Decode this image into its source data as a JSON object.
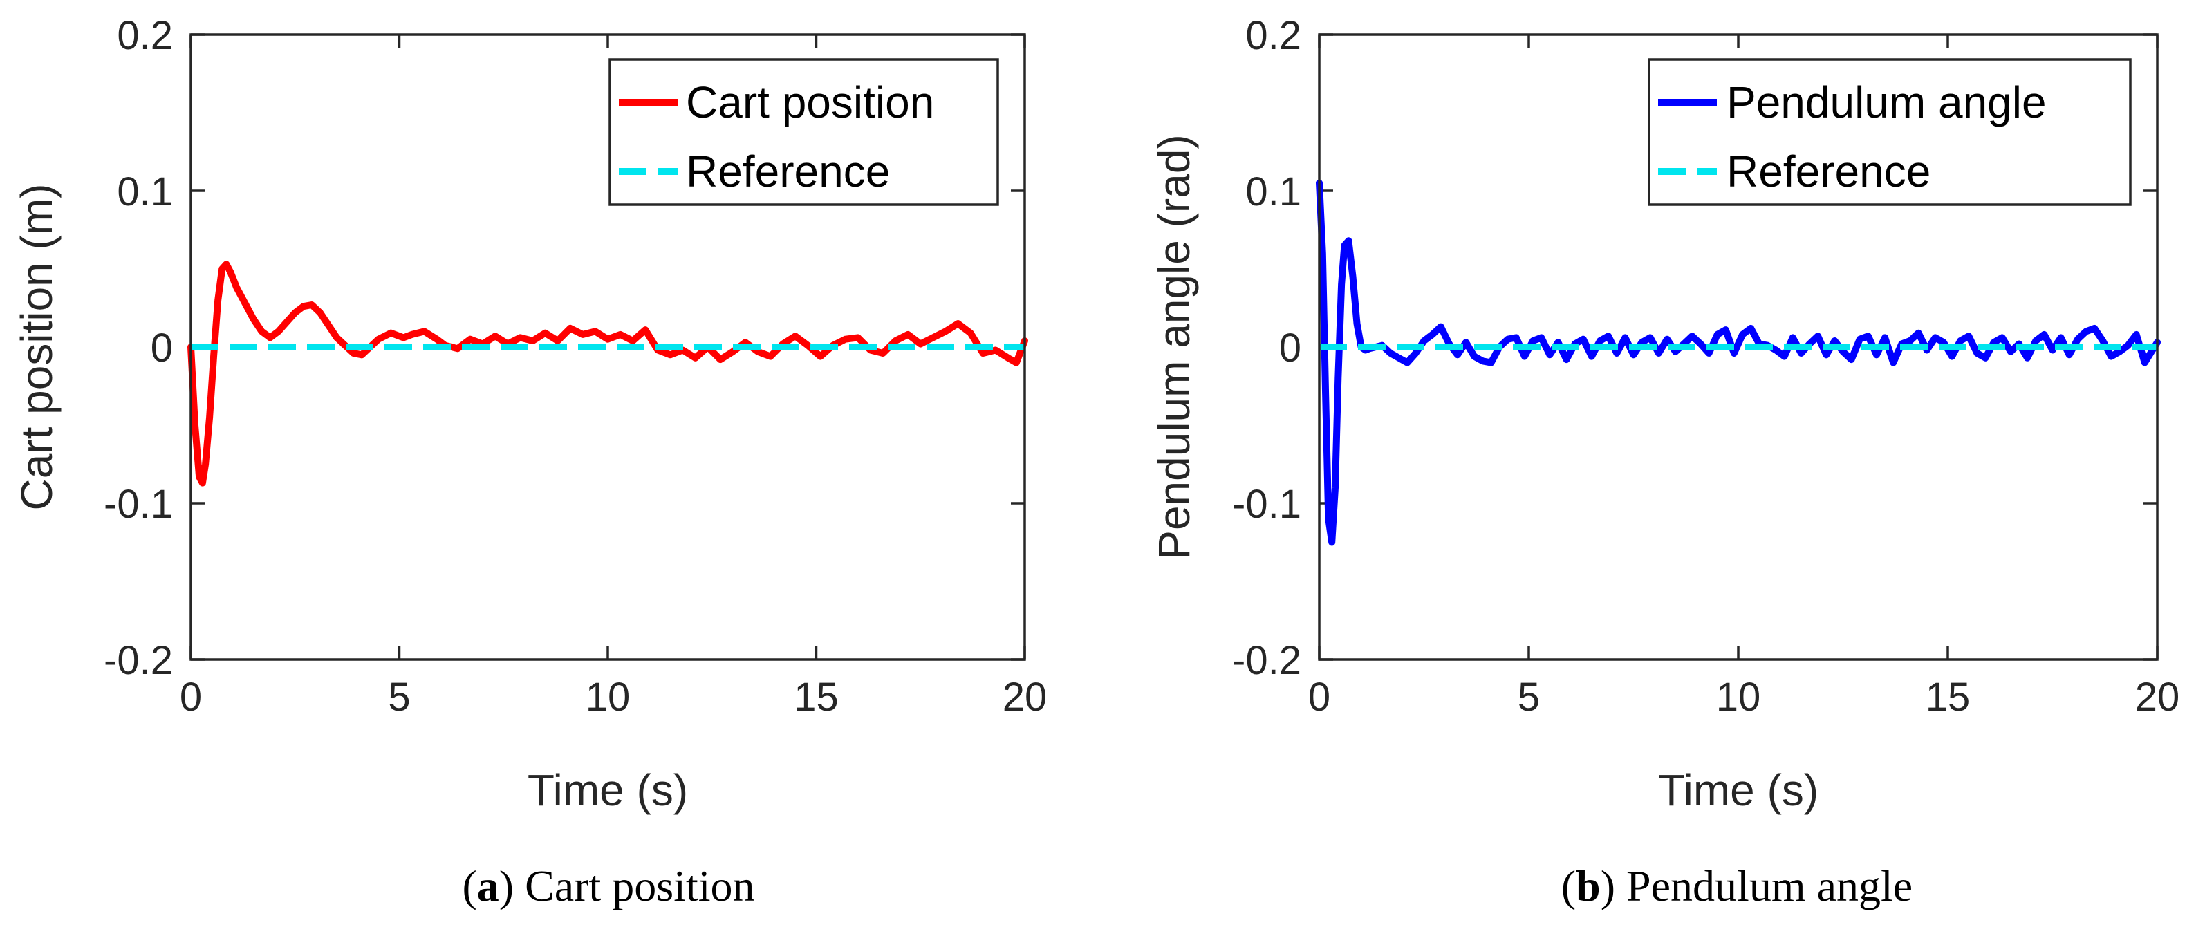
{
  "colors": {
    "red": "#ff0000",
    "blue": "#0000ff",
    "cyan": "#00e5ee",
    "axis": "#262626"
  },
  "chart_data": [
    {
      "type": "line",
      "xlabel": "Time (s)",
      "ylabel": "Cart position (m)",
      "xlim": [
        0,
        20
      ],
      "ylim": [
        -0.2,
        0.2
      ],
      "xticks": [
        0,
        5,
        10,
        15,
        20
      ],
      "xtick_labels": [
        "0",
        "5",
        "10",
        "15",
        "20"
      ],
      "yticks": [
        -0.2,
        -0.1,
        0,
        0.1,
        0.2
      ],
      "ytick_labels": [
        "-0.2",
        "-0.1",
        "0",
        "0.1",
        "0.2"
      ],
      "legend_position": "top-right",
      "caption_letter": "a",
      "caption_text": "Cart position",
      "series": [
        {
          "name": "Cart position",
          "color": "#ff0000",
          "style": "solid",
          "x": [
            0,
            0.1,
            0.2,
            0.28,
            0.35,
            0.45,
            0.55,
            0.65,
            0.75,
            0.85,
            0.95,
            1.1,
            1.3,
            1.5,
            1.7,
            1.9,
            2.1,
            2.3,
            2.5,
            2.7,
            2.9,
            3.1,
            3.3,
            3.5,
            3.7,
            3.9,
            4.1,
            4.3,
            4.5,
            4.8,
            5.1,
            5.3,
            5.6,
            5.9,
            6.1,
            6.4,
            6.7,
            7.0,
            7.3,
            7.6,
            7.9,
            8.2,
            8.5,
            8.8,
            9.1,
            9.4,
            9.7,
            10.0,
            10.3,
            10.6,
            10.9,
            11.2,
            11.5,
            11.8,
            12.1,
            12.4,
            12.7,
            13.0,
            13.3,
            13.6,
            13.9,
            14.2,
            14.5,
            14.8,
            15.1,
            15.4,
            15.7,
            16.0,
            16.3,
            16.6,
            16.9,
            17.2,
            17.5,
            17.8,
            18.1,
            18.4,
            18.7,
            19.0,
            19.3,
            19.6,
            19.8,
            20.0
          ],
          "y": [
            0,
            -0.05,
            -0.083,
            -0.087,
            -0.075,
            -0.045,
            -0.005,
            0.03,
            0.05,
            0.053,
            0.048,
            0.038,
            0.028,
            0.018,
            0.01,
            0.006,
            0.01,
            0.016,
            0.022,
            0.026,
            0.027,
            0.022,
            0.014,
            0.006,
            0.001,
            -0.004,
            -0.005,
            0,
            0.005,
            0.009,
            0.006,
            0.008,
            0.01,
            0.005,
            0.001,
            -0.001,
            0.005,
            0.002,
            0.007,
            0.002,
            0.006,
            0.004,
            0.009,
            0.004,
            0.012,
            0.008,
            0.01,
            0.005,
            0.008,
            0.004,
            0.011,
            -0.002,
            -0.005,
            -0.002,
            -0.007,
            0,
            -0.008,
            -0.003,
            0.003,
            -0.003,
            -0.006,
            0.002,
            0.007,
            0.001,
            -0.006,
            0.001,
            0.005,
            0.006,
            -0.002,
            -0.004,
            0.004,
            0.008,
            0.002,
            0.006,
            0.01,
            0.015,
            0.009,
            -0.004,
            -0.002,
            -0.007,
            -0.01,
            0.004
          ]
        },
        {
          "name": "Reference",
          "color": "#00e5ee",
          "style": "dashed",
          "x": [
            0,
            20
          ],
          "y": [
            0,
            0
          ]
        }
      ]
    },
    {
      "type": "line",
      "xlabel": "Time (s)",
      "ylabel": "Pendulum angle (rad)",
      "xlim": [
        0,
        20
      ],
      "ylim": [
        -0.2,
        0.2
      ],
      "xticks": [
        0,
        5,
        10,
        15,
        20
      ],
      "xtick_labels": [
        "0",
        "5",
        "10",
        "15",
        "20"
      ],
      "yticks": [
        -0.2,
        -0.1,
        0,
        0.1,
        0.2
      ],
      "ytick_labels": [
        "-0.2",
        "-0.1",
        "0",
        "0.1",
        "0.2"
      ],
      "legend_position": "top-right",
      "caption_letter": "b",
      "caption_text": "Pendulum angle",
      "series": [
        {
          "name": "Pendulum angle",
          "color": "#0000ff",
          "style": "solid",
          "x": [
            0,
            0.08,
            0.15,
            0.22,
            0.3,
            0.38,
            0.45,
            0.53,
            0.6,
            0.7,
            0.8,
            0.9,
            1.0,
            1.1,
            1.2,
            1.35,
            1.5,
            1.7,
            1.9,
            2.1,
            2.3,
            2.5,
            2.7,
            2.9,
            3.1,
            3.3,
            3.5,
            3.7,
            3.9,
            4.1,
            4.3,
            4.5,
            4.7,
            4.9,
            5.1,
            5.3,
            5.5,
            5.7,
            5.9,
            6.1,
            6.3,
            6.5,
            6.7,
            6.9,
            7.1,
            7.3,
            7.5,
            7.7,
            7.9,
            8.1,
            8.3,
            8.5,
            8.7,
            8.9,
            9.1,
            9.3,
            9.5,
            9.7,
            9.9,
            10.1,
            10.3,
            10.5,
            10.7,
            10.9,
            11.1,
            11.3,
            11.5,
            11.7,
            11.9,
            12.1,
            12.3,
            12.5,
            12.7,
            12.9,
            13.1,
            13.3,
            13.5,
            13.7,
            13.9,
            14.1,
            14.3,
            14.5,
            14.7,
            14.9,
            15.1,
            15.3,
            15.5,
            15.7,
            15.9,
            16.1,
            16.3,
            16.5,
            16.7,
            16.9,
            17.1,
            17.3,
            17.5,
            17.7,
            17.9,
            18.1,
            18.3,
            18.5,
            18.7,
            18.9,
            19.1,
            19.3,
            19.5,
            19.7,
            20.0
          ],
          "y": [
            0.105,
            0.06,
            -0.03,
            -0.11,
            -0.125,
            -0.09,
            -0.02,
            0.04,
            0.065,
            0.068,
            0.045,
            0.015,
            0,
            -0.002,
            -0.001,
            0,
            0.001,
            -0.004,
            -0.007,
            -0.01,
            -0.004,
            0.004,
            0.008,
            0.013,
            0.002,
            -0.005,
            0.003,
            -0.006,
            -0.009,
            -0.01,
            0,
            0.005,
            0.006,
            -0.006,
            0.004,
            0.006,
            -0.005,
            0.003,
            -0.008,
            0.002,
            0.005,
            -0.006,
            0.004,
            0.007,
            -0.004,
            0.006,
            -0.005,
            0.003,
            0.006,
            -0.004,
            0.005,
            -0.003,
            0.002,
            0.007,
            0.002,
            -0.004,
            0.008,
            0.011,
            -0.004,
            0.008,
            0.012,
            0.002,
            0.001,
            -0.002,
            -0.006,
            0.006,
            -0.004,
            0.002,
            0.007,
            -0.005,
            0.004,
            -0.003,
            -0.008,
            0.005,
            0.007,
            -0.005,
            0.006,
            -0.01,
            0.002,
            0.004,
            0.009,
            -0.002,
            0.006,
            0.003,
            -0.006,
            0.004,
            0.007,
            -0.004,
            -0.007,
            0.003,
            0.006,
            -0.003,
            0.002,
            -0.007,
            0.004,
            0.008,
            -0.002,
            0.006,
            -0.005,
            0.005,
            0.01,
            0.012,
            0.004,
            -0.006,
            -0.003,
            0.001,
            0.008,
            -0.01,
            0.003
          ]
        },
        {
          "name": "Reference",
          "color": "#00e5ee",
          "style": "dashed",
          "x": [
            0,
            20
          ],
          "y": [
            0,
            0
          ]
        }
      ]
    }
  ]
}
